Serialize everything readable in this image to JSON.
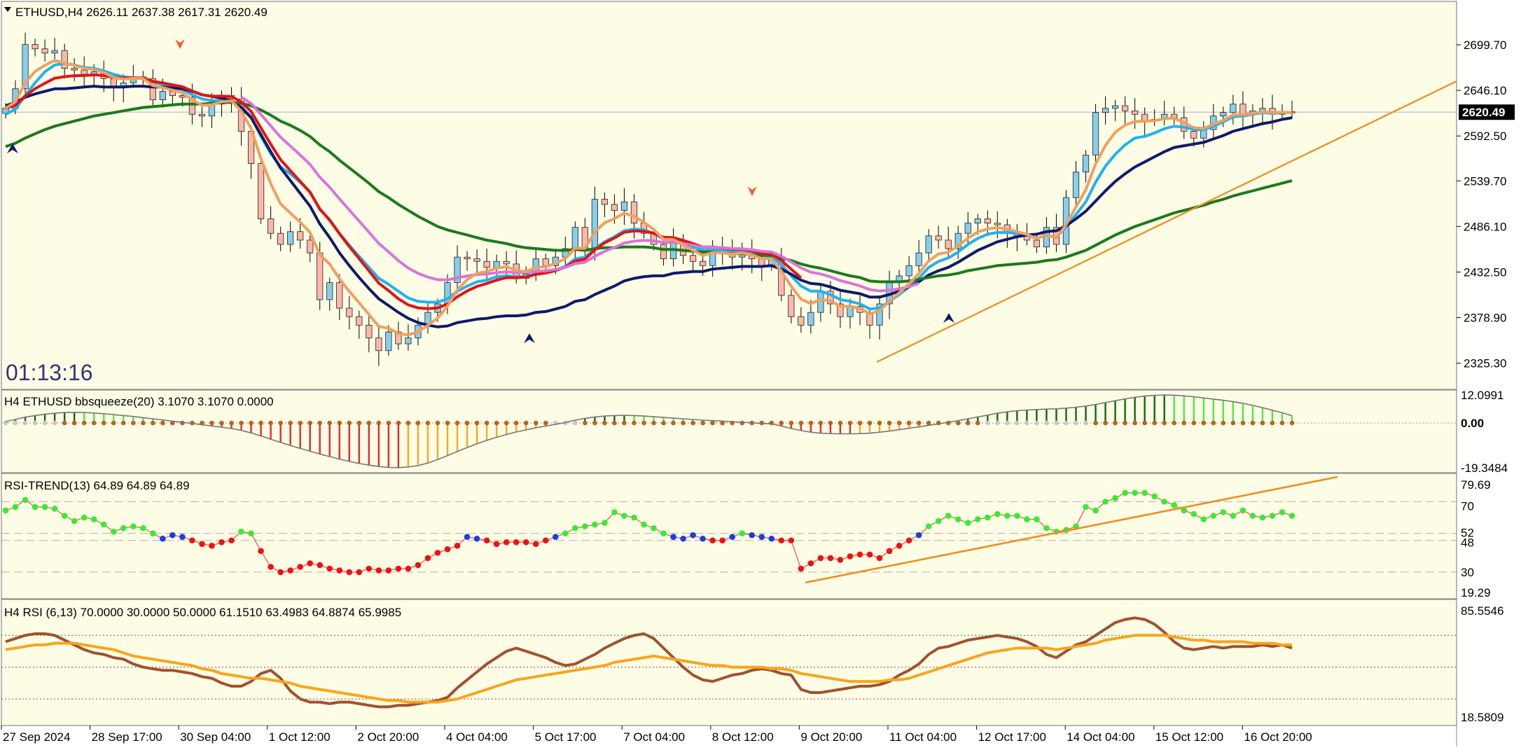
{
  "colors": {
    "background": "#fdfde6",
    "frame": "#8a8a8a",
    "bull_candle": "#87ceeb",
    "bear_candle": "#fdb7a8",
    "wick": "#000000",
    "ma_fast_cyan": "#1fb3f0",
    "ma_navy": "#0d1b6b",
    "ma_green": "#1b7a1b",
    "ma_magenta": "#d975d9",
    "ma_red": "#e31414",
    "ma_sand": "#f0a060",
    "trendline": "#f08c1e",
    "hist_red": "#e12a2a",
    "hist_orange": "#f7a720",
    "hist_darkgreen": "#106610",
    "hist_green": "#48ea48",
    "rsi_red": "#f01010",
    "rsi_green": "#33ee33",
    "rsi_blue": "#1a3ee0",
    "rsi_brown": "#a0522d",
    "rsi_orange": "#f8a51c",
    "clock": "#33337a",
    "price_tag_bg": "#000000",
    "price_tag_fg": "#ffffff"
  },
  "header": {
    "title": "ETHUSD,H4  2626.11 2637.38 2617.31 2620.49"
  },
  "countdown": "01:13:16",
  "current_price_tag": "2620.49",
  "chart_data": [
    {
      "type": "candlestick",
      "title": "ETHUSD,H4",
      "ohlc_readout": [
        2626.11,
        2637.38,
        2617.31,
        2620.49
      ],
      "y_ticks": [
        "2699.70",
        "2646.10",
        "2592.50",
        "2539.70",
        "2486.10",
        "2432.50",
        "2378.90",
        "2325.30"
      ],
      "ylim": [
        2298,
        2738
      ],
      "x_tick_labels": [
        "27 Sep 2024",
        "28 Sep 17:00",
        "30 Sep 04:00",
        "1 Oct 12:00",
        "2 Oct 20:00",
        "4 Oct 04:00",
        "5 Oct 17:00",
        "7 Oct 04:00",
        "8 Oct 12:00",
        "9 Oct 20:00",
        "11 Oct 04:00",
        "12 Oct 17:00",
        "14 Oct 04:00",
        "15 Oct 12:00",
        "16 Oct 20:00"
      ],
      "closes": [
        2625,
        2648,
        2700,
        2695,
        2690,
        2693,
        2672,
        2670,
        2665,
        2668,
        2660,
        2650,
        2655,
        2662,
        2660,
        2635,
        2645,
        2640,
        2638,
        2618,
        2616,
        2630,
        2640,
        2636,
        2598,
        2560,
        2495,
        2478,
        2465,
        2480,
        2470,
        2455,
        2400,
        2420,
        2390,
        2380,
        2370,
        2355,
        2340,
        2362,
        2348,
        2355,
        2370,
        2385,
        2395,
        2420,
        2450,
        2448,
        2445,
        2438,
        2445,
        2442,
        2425,
        2430,
        2448,
        2440,
        2450,
        2460,
        2485,
        2460,
        2518,
        2512,
        2505,
        2515,
        2490,
        2478,
        2465,
        2448,
        2470,
        2452,
        2445,
        2440,
        2462,
        2455,
        2450,
        2458,
        2448,
        2440,
        2447,
        2405,
        2380,
        2370,
        2385,
        2410,
        2395,
        2380,
        2392,
        2385,
        2370,
        2395,
        2420,
        2428,
        2440,
        2455,
        2475,
        2470,
        2460,
        2478,
        2490,
        2495,
        2490,
        2488,
        2478,
        2475,
        2470,
        2462,
        2485,
        2465,
        2520,
        2550,
        2570,
        2620,
        2625,
        2628,
        2622,
        2618,
        2610,
        2612,
        2618,
        2614,
        2598,
        2590,
        2600,
        2616,
        2620,
        2630,
        2618,
        2622,
        2625,
        2618,
        2621,
        2620
      ],
      "series": [
        {
          "name": "MA cyan",
          "values": [
            2618,
            2624,
            2640,
            2655,
            2668,
            2676,
            2678,
            2676,
            2673,
            2672,
            2669,
            2665,
            2662,
            2661,
            2660,
            2656,
            2653,
            2650,
            2647,
            2641,
            2636,
            2634,
            2634,
            2634,
            2627,
            2615,
            2592,
            2572,
            2556,
            2548,
            2538,
            2527,
            2506,
            2494,
            2478,
            2464,
            2451,
            2438,
            2425,
            2418,
            2410,
            2402,
            2398,
            2397,
            2397,
            2401,
            2410,
            2416,
            2421,
            2423,
            2427,
            2428,
            2427,
            2427,
            2431,
            2432,
            2435,
            2439,
            2448,
            2450,
            2460,
            2468,
            2474,
            2481,
            2483,
            2482,
            2478,
            2471,
            2471,
            2467,
            2462,
            2458,
            2459,
            2458,
            2456,
            2457,
            2455,
            2452,
            2451,
            2441,
            2428,
            2416,
            2410,
            2410,
            2406,
            2400,
            2398,
            2395,
            2389,
            2390,
            2398,
            2406,
            2415,
            2425,
            2438,
            2445,
            2449,
            2456,
            2465,
            2472,
            2477,
            2479,
            2479,
            2478,
            2476,
            2472,
            2476,
            2473,
            2486,
            2500,
            2515,
            2538,
            2557,
            2571,
            2582,
            2590,
            2592,
            2596,
            2601,
            2604,
            2603,
            2600,
            2600,
            2604,
            2609,
            2615,
            2616,
            2618,
            2620,
            2619,
            2620,
            2620
          ]
        },
        {
          "name": "MA navy",
          "values": [
            2628,
            2632,
            2638,
            2642,
            2645,
            2648,
            2648,
            2649,
            2650,
            2651,
            2650,
            2650,
            2650,
            2651,
            2651,
            2650,
            2650,
            2649,
            2648,
            2645,
            2641,
            2639,
            2637,
            2634,
            2626,
            2614,
            2594,
            2574,
            2555,
            2540,
            2525,
            2510,
            2489,
            2473,
            2455,
            2440,
            2426,
            2413,
            2401,
            2393,
            2385,
            2378,
            2373,
            2370,
            2368,
            2369,
            2373,
            2375,
            2377,
            2378,
            2380,
            2381,
            2381,
            2382,
            2385,
            2386,
            2389,
            2392,
            2398,
            2400,
            2406,
            2411,
            2416,
            2422,
            2425,
            2427,
            2428,
            2428,
            2431,
            2432,
            2433,
            2433,
            2436,
            2437,
            2438,
            2439,
            2439,
            2439,
            2440,
            2436,
            2430,
            2423,
            2419,
            2418,
            2415,
            2411,
            2409,
            2407,
            2403,
            2403,
            2406,
            2410,
            2415,
            2421,
            2429,
            2434,
            2438,
            2444,
            2451,
            2458,
            2463,
            2468,
            2471,
            2474,
            2476,
            2477,
            2480,
            2481,
            2487,
            2495,
            2504,
            2516,
            2528,
            2539,
            2548,
            2556,
            2562,
            2568,
            2574,
            2579,
            2581,
            2583,
            2585,
            2589,
            2593,
            2598,
            2601,
            2604,
            2607,
            2609,
            2612,
            2614
          ]
        },
        {
          "name": "MA green",
          "values": [
            2580,
            2584,
            2590,
            2595,
            2600,
            2604,
            2607,
            2610,
            2613,
            2616,
            2618,
            2620,
            2622,
            2624,
            2626,
            2627,
            2628,
            2629,
            2630,
            2630,
            2630,
            2631,
            2632,
            2632,
            2631,
            2628,
            2623,
            2617,
            2610,
            2605,
            2599,
            2592,
            2582,
            2574,
            2564,
            2555,
            2546,
            2537,
            2527,
            2520,
            2512,
            2505,
            2498,
            2492,
            2486,
            2482,
            2479,
            2476,
            2473,
            2470,
            2468,
            2466,
            2463,
            2461,
            2460,
            2459,
            2458,
            2458,
            2459,
            2458,
            2460,
            2461,
            2461,
            2462,
            2462,
            2462,
            2461,
            2459,
            2459,
            2458,
            2457,
            2456,
            2456,
            2455,
            2454,
            2454,
            2453,
            2452,
            2452,
            2449,
            2446,
            2442,
            2439,
            2437,
            2434,
            2431,
            2428,
            2426,
            2422,
            2421,
            2421,
            2421,
            2422,
            2424,
            2426,
            2428,
            2429,
            2431,
            2434,
            2436,
            2438,
            2440,
            2441,
            2442,
            2443,
            2444,
            2446,
            2447,
            2450,
            2454,
            2458,
            2464,
            2470,
            2476,
            2481,
            2486,
            2490,
            2494,
            2498,
            2502,
            2505,
            2508,
            2511,
            2515,
            2518,
            2522,
            2525,
            2528,
            2531,
            2534,
            2537,
            2540
          ]
        }
      ]
    },
    {
      "type": "bar",
      "title": "H4 ETHUSD bbsqueeze(20) 3.1070 3.1070 0.0000",
      "y_ticks": [
        "12.0991",
        "0.00",
        "-19.3484"
      ],
      "ylim": [
        -22,
        15
      ],
      "values": [
        0.6,
        1.5,
        2.5,
        3.2,
        3.8,
        4.2,
        4.5,
        4.6,
        4.5,
        4.3,
        4.0,
        3.6,
        3.2,
        2.8,
        2.3,
        1.8,
        1.3,
        0.8,
        0.3,
        -0.2,
        -0.8,
        -1.3,
        -1.8,
        -2.4,
        -3.2,
        -4.3,
        -5.6,
        -7.0,
        -8.4,
        -9.7,
        -11.0,
        -12.2,
        -13.4,
        -14.5,
        -15.6,
        -16.6,
        -17.5,
        -18.2,
        -18.8,
        -19.2,
        -19.3,
        -19.0,
        -18.4,
        -17.3,
        -15.8,
        -14.1,
        -12.3,
        -10.6,
        -9.0,
        -7.5,
        -6.2,
        -5.0,
        -3.9,
        -3.0,
        -2.1,
        -1.3,
        -0.6,
        0.2,
        1.2,
        2.0,
        2.6,
        3.0,
        3.2,
        3.3,
        3.2,
        3.0,
        2.7,
        2.4,
        2.1,
        1.8,
        1.5,
        1.2,
        1.0,
        0.8,
        0.5,
        0.3,
        0.1,
        -0.2,
        -0.4,
        -1.3,
        -2.4,
        -3.3,
        -4.0,
        -4.4,
        -4.6,
        -4.7,
        -4.7,
        -4.6,
        -4.4,
        -4.0,
        -3.5,
        -2.9,
        -2.3,
        -1.7,
        -1.0,
        -0.4,
        0.3,
        1.0,
        1.8,
        2.6,
        3.4,
        4.2,
        4.8,
        5.3,
        5.6,
        5.8,
        6.0,
        6.1,
        6.4,
        6.8,
        7.3,
        8.0,
        8.8,
        9.6,
        10.4,
        11.1,
        11.6,
        11.9,
        12.1,
        12.0,
        11.7,
        11.3,
        10.8,
        10.3,
        9.8,
        9.2,
        8.5,
        7.6,
        6.6,
        5.5,
        4.4,
        3.1
      ]
    },
    {
      "type": "line",
      "title": "RSI-TREND(13) 64.89 64.89 64.89",
      "y_ticks": [
        "79.69",
        "70",
        "52",
        "48",
        "30",
        "19.29"
      ],
      "ylim": [
        19.29,
        79.69
      ],
      "values": [
        65,
        67,
        71,
        67,
        67,
        66,
        62,
        59,
        61,
        60,
        57,
        53,
        55,
        56,
        55,
        52,
        49,
        51,
        50,
        48,
        46,
        45,
        47,
        48,
        53,
        52,
        42,
        33,
        30,
        31,
        33,
        35,
        34,
        32,
        31,
        30,
        30,
        32,
        31,
        31,
        32,
        32,
        34,
        38,
        41,
        43,
        45,
        50,
        49,
        48,
        46,
        47,
        47,
        47,
        46,
        48,
        50,
        52,
        55,
        56,
        57,
        58,
        64,
        62,
        61,
        57,
        55,
        52,
        50,
        49,
        51,
        49,
        48,
        48,
        50,
        52,
        51,
        50,
        49,
        48,
        48,
        32,
        35,
        38,
        38,
        37,
        39,
        40,
        40,
        38,
        42,
        45,
        48,
        51,
        56,
        59,
        62,
        60,
        58,
        60,
        61,
        63,
        62,
        62,
        60,
        60,
        55,
        53,
        54,
        56,
        67,
        65,
        70,
        72,
        75,
        75,
        75,
        73,
        70,
        68,
        65,
        63,
        60,
        62,
        64,
        62,
        65,
        62,
        61,
        62,
        64,
        62
      ]
    },
    {
      "type": "line",
      "title": "H4 RSI  (6,13) 70.0000 30.0000 50.0000 61.1510 63.4983 64.8874 65.9985",
      "y_ticks": [
        "85.5546",
        "18.5809"
      ],
      "ylim": [
        18.58,
        85.55
      ],
      "levels": [
        70,
        50,
        30
      ],
      "series": [
        {
          "name": "RSI fast",
          "values": [
            66,
            68,
            70,
            71,
            71,
            70,
            67,
            64,
            61,
            59,
            58,
            56,
            55,
            52,
            50,
            49,
            48,
            48,
            47,
            46,
            44,
            43,
            40,
            38,
            38,
            41,
            46,
            48,
            43,
            35,
            30,
            28,
            28,
            27,
            28,
            28,
            27,
            26,
            25,
            25,
            26,
            26,
            27,
            28,
            29,
            31,
            37,
            42,
            47,
            52,
            56,
            60,
            62,
            60,
            58,
            56,
            53,
            51,
            52,
            55,
            58,
            62,
            65,
            68,
            70,
            71,
            68,
            62,
            56,
            50,
            45,
            42,
            41,
            43,
            45,
            46,
            48,
            49,
            48,
            46,
            45,
            36,
            34,
            34,
            35,
            36,
            37,
            38,
            38,
            39,
            41,
            45,
            48,
            52,
            58,
            62,
            63,
            65,
            67,
            68,
            69,
            70,
            69,
            68,
            66,
            63,
            58,
            56,
            60,
            64,
            66,
            70,
            74,
            78,
            80,
            81,
            80,
            77,
            72,
            66,
            62,
            61,
            62,
            63,
            62,
            63,
            63,
            63,
            64,
            63,
            64,
            62
          ]
        },
        {
          "name": "RSI slow",
          "values": [
            61,
            62,
            63,
            64,
            64,
            65,
            65,
            65,
            64,
            63,
            62,
            61,
            59,
            57,
            56,
            55,
            54,
            53,
            52,
            51,
            49,
            48,
            46,
            45,
            44,
            43,
            43,
            42,
            41,
            40,
            38,
            37,
            36,
            35,
            34,
            33,
            32,
            31,
            30,
            29,
            29,
            28,
            28,
            28,
            28,
            29,
            30,
            32,
            34,
            36,
            38,
            40,
            42,
            43,
            44,
            45,
            46,
            47,
            48,
            49,
            50,
            51,
            53,
            54,
            55,
            56,
            57,
            56,
            55,
            54,
            53,
            52,
            51,
            51,
            50,
            50,
            50,
            50,
            49,
            49,
            48,
            46,
            45,
            44,
            43,
            42,
            41,
            41,
            41,
            41,
            42,
            42,
            43,
            45,
            47,
            49,
            51,
            53,
            55,
            57,
            59,
            60,
            61,
            62,
            62,
            62,
            62,
            61,
            62,
            63,
            64,
            65,
            67,
            68,
            69,
            70,
            70,
            70,
            70,
            69,
            68,
            67,
            67,
            66,
            66,
            66,
            66,
            65,
            65,
            65,
            64,
            64
          ]
        }
      ]
    }
  ]
}
